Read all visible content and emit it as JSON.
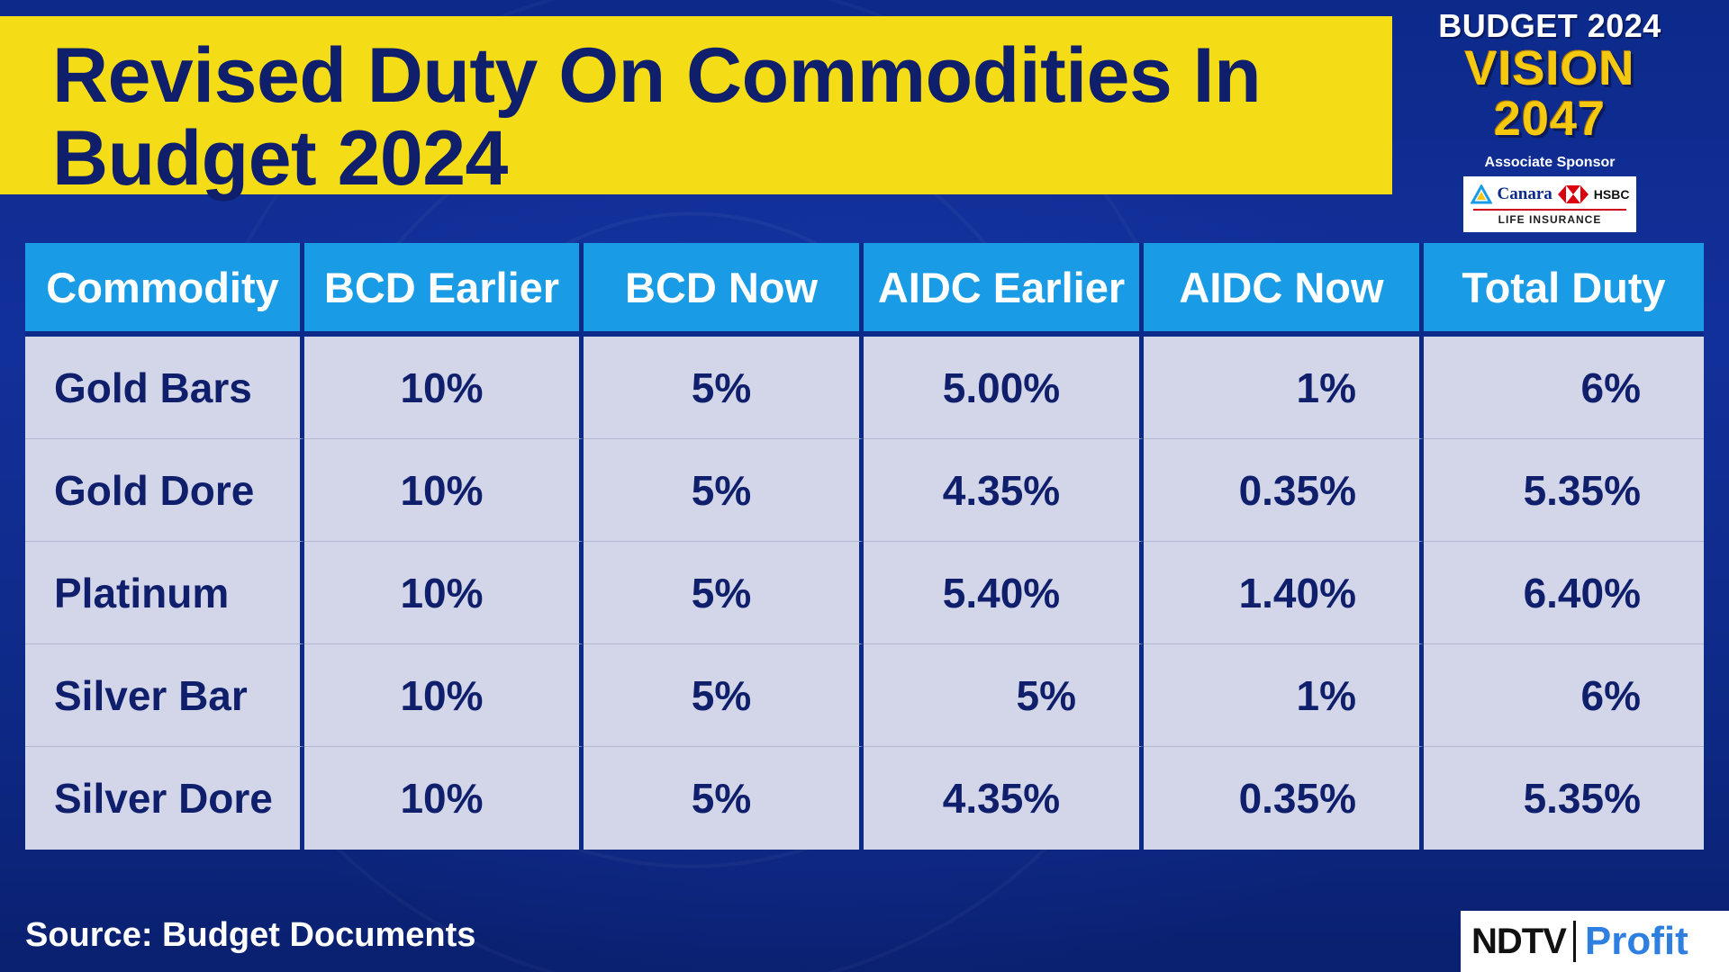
{
  "title": {
    "line1": "Revised Duty On Commodities In",
    "line2": "Budget 2024"
  },
  "branding": {
    "line1": "BUDGET 2024",
    "line2": "VISION 2047",
    "sponsor_label": "Associate Sponsor",
    "sponsor_name_1": "Canara",
    "sponsor_name_2": "HSBC",
    "sponsor_sub": "LIFE INSURANCE"
  },
  "table": {
    "headers": [
      "Commodity",
      "BCD Earlier",
      "BCD Now",
      "AIDC Earlier",
      "AIDC Now",
      "Total Duty"
    ],
    "rows": [
      [
        "Gold Bars",
        "10%",
        "5%",
        "5.00%",
        "1%",
        "6%"
      ],
      [
        "Gold Dore",
        "10%",
        "5%",
        "4.35%",
        "0.35%",
        "5.35%"
      ],
      [
        "Platinum",
        "10%",
        "5%",
        "5.40%",
        "1.40%",
        "6.40%"
      ],
      [
        "Silver Bar",
        "10%",
        "5%",
        "5%",
        "1%",
        "6%"
      ],
      [
        "Silver Dore",
        "10%",
        "5%",
        "4.35%",
        "0.35%",
        "5.35%"
      ]
    ]
  },
  "footer": {
    "source": "Source: Budget Documents",
    "logo_left": "NDTV",
    "logo_right": "Profit"
  },
  "colors": {
    "background": "#12309a",
    "title_banner": "#f4dc17",
    "title_text": "#0f1f6b",
    "header_cell": "#1a9be6",
    "body_cell": "#d3d6e8",
    "vision_text": "#f4c90f",
    "profit_text": "#2f7fe0"
  }
}
